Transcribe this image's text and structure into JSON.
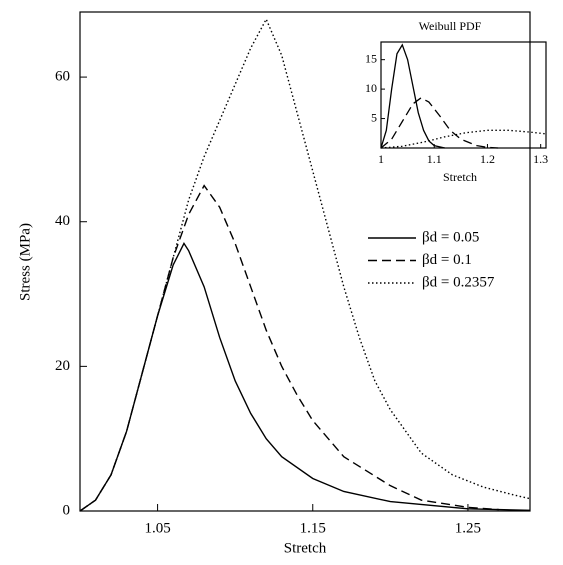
{
  "chart_data": [
    {
      "type": "line",
      "xlabel": "Stretch",
      "ylabel": "Stress (MPa)",
      "xlim": [
        1.0,
        1.29
      ],
      "ylim": [
        0,
        69
      ],
      "xticks": [
        1.05,
        1.15,
        1.25
      ],
      "yticks": [
        0,
        20,
        40,
        60
      ],
      "legend": "right",
      "series": [
        {
          "name": "βd = 0.05",
          "color": "#000000",
          "linestyle": "solid",
          "x": [
            1.0,
            1.01,
            1.02,
            1.03,
            1.04,
            1.05,
            1.06,
            1.067,
            1.07,
            1.08,
            1.09,
            1.1,
            1.11,
            1.12,
            1.13,
            1.15,
            1.17,
            1.2,
            1.25,
            1.29
          ],
          "values": [
            0,
            1.5,
            5,
            11,
            19,
            27,
            34,
            37,
            36,
            31,
            24,
            18,
            13.5,
            10,
            7.5,
            4.5,
            2.7,
            1.3,
            0.3,
            0.1
          ]
        },
        {
          "name": "βd = 0.1",
          "color": "#000000",
          "linestyle": "dashed",
          "x": [
            1.0,
            1.01,
            1.02,
            1.03,
            1.04,
            1.05,
            1.06,
            1.07,
            1.08,
            1.09,
            1.1,
            1.11,
            1.12,
            1.13,
            1.14,
            1.15,
            1.17,
            1.2,
            1.22,
            1.25,
            1.27
          ],
          "values": [
            0,
            1.5,
            5,
            11,
            19,
            27,
            35,
            41,
            45,
            42,
            37,
            31,
            25,
            20,
            16,
            12.5,
            7.5,
            3.5,
            1.5,
            0.5,
            0.2
          ]
        },
        {
          "name": "βd = 0.2357",
          "color": "#000000",
          "linestyle": "dotted",
          "x": [
            1.0,
            1.01,
            1.02,
            1.03,
            1.04,
            1.05,
            1.06,
            1.07,
            1.08,
            1.09,
            1.1,
            1.11,
            1.12,
            1.13,
            1.14,
            1.15,
            1.16,
            1.17,
            1.18,
            1.19,
            1.2,
            1.22,
            1.24,
            1.26,
            1.28,
            1.29
          ],
          "values": [
            0,
            1.5,
            5,
            11,
            19,
            27,
            35,
            43,
            49,
            54,
            59,
            64,
            68,
            63,
            55,
            47,
            39,
            31,
            24,
            18,
            14,
            8,
            5,
            3.3,
            2.2,
            1.7
          ]
        }
      ]
    },
    {
      "type": "line",
      "title": "Weibull PDF",
      "xlabel": "Stretch",
      "xlim": [
        1.0,
        1.31
      ],
      "ylim": [
        0,
        18
      ],
      "xticks": [
        1,
        1.1,
        1.2,
        1.3
      ],
      "yticks": [
        5,
        10,
        15
      ],
      "series": [
        {
          "color": "#000000",
          "linestyle": "solid",
          "x": [
            1.0,
            1.01,
            1.02,
            1.03,
            1.04,
            1.05,
            1.06,
            1.07,
            1.08,
            1.09,
            1.1,
            1.12
          ],
          "values": [
            0,
            3,
            10,
            16,
            17.5,
            15,
            10.5,
            6,
            3,
            1.2,
            0.4,
            0
          ]
        },
        {
          "color": "#000000",
          "linestyle": "dashed",
          "x": [
            1.0,
            1.02,
            1.04,
            1.06,
            1.075,
            1.09,
            1.11,
            1.13,
            1.15,
            1.18,
            1.2,
            1.22
          ],
          "values": [
            0,
            1.5,
            4.5,
            7.5,
            8.5,
            7.8,
            5.5,
            3,
            1.5,
            0.4,
            0.1,
            0
          ]
        },
        {
          "color": "#000000",
          "linestyle": "dotted",
          "x": [
            1.0,
            1.04,
            1.08,
            1.12,
            1.16,
            1.2,
            1.24,
            1.28,
            1.31
          ],
          "values": [
            0,
            0.3,
            1,
            1.9,
            2.6,
            3,
            3,
            2.7,
            2.4
          ]
        }
      ]
    }
  ]
}
